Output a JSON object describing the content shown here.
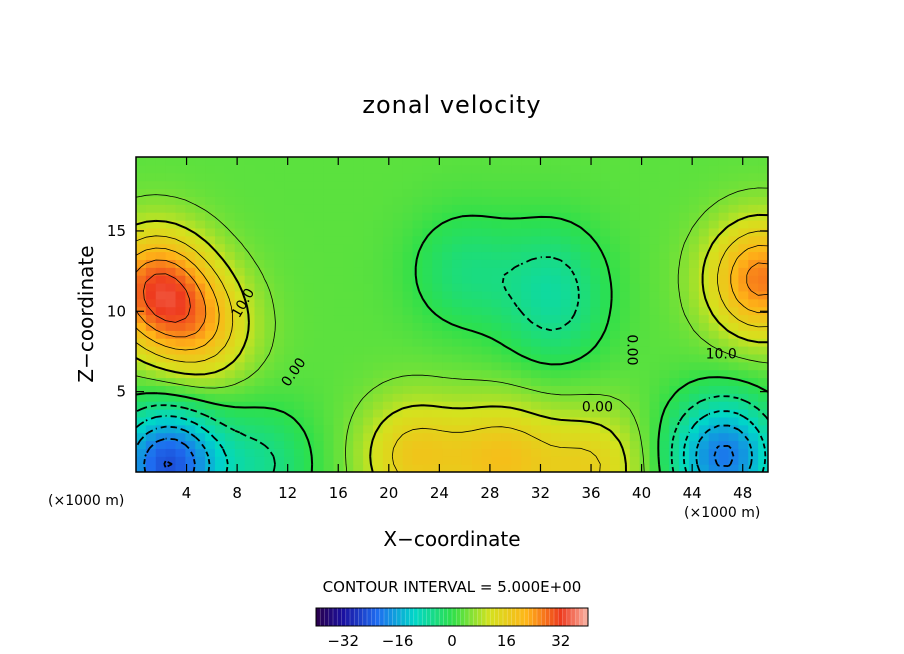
{
  "chart_data": {
    "type": "heatmap",
    "title": "zonal velocity",
    "xlabel": "X−coordinate",
    "ylabel": "Z−coordinate",
    "x_unit_left": "(×1000 m)",
    "x_unit_right": "(×1000 m)",
    "xlim": [
      0,
      50
    ],
    "ylim": [
      0,
      19.6
    ],
    "x_ticks": [
      4,
      8,
      12,
      16,
      20,
      24,
      28,
      32,
      36,
      40,
      44,
      48
    ],
    "y_ticks": [
      5,
      10,
      15
    ],
    "contour_interval_text": "CONTOUR INTERVAL = 5.000E+00",
    "contour_interval": 5.0,
    "colorbar": {
      "range": [
        -40,
        40
      ],
      "ticks": [
        -32,
        -16,
        0,
        16,
        32
      ],
      "tick_labels": [
        "−32",
        "−16",
        "0",
        "16",
        "32"
      ]
    },
    "contour_labels": [
      {
        "text": "10.0",
        "x": 8.5,
        "z": 10.5,
        "rotate": -60
      },
      {
        "text": "0.00",
        "x": 12.5,
        "z": 6.2,
        "rotate": -55
      },
      {
        "text": "0.00",
        "x": 39.2,
        "z": 7.6,
        "rotate": 90
      },
      {
        "text": "10.0",
        "x": 46.3,
        "z": 7.3,
        "rotate": 0
      },
      {
        "text": "0.00",
        "x": 36.5,
        "z": 4.0,
        "rotate": 0
      }
    ],
    "field_features": [
      {
        "kind": "max",
        "x": 1.5,
        "z": 11.5,
        "value": 25
      },
      {
        "kind": "max",
        "x": 49.5,
        "z": 12,
        "value": 24
      },
      {
        "kind": "max",
        "x": 5,
        "z": 9,
        "value": 15
      },
      {
        "kind": "min",
        "x": 2.5,
        "z": 0.5,
        "value": -28
      },
      {
        "kind": "min",
        "x": 46.5,
        "z": 1,
        "value": -24
      },
      {
        "kind": "min",
        "x": 10,
        "z": 0.5,
        "value": -8
      },
      {
        "kind": "min",
        "x": 26,
        "z": 12.5,
        "value": -7
      },
      {
        "kind": "min",
        "x": 33,
        "z": 12.5,
        "value": -6
      },
      {
        "kind": "min",
        "x": 33,
        "z": 9.5,
        "value": -6
      },
      {
        "kind": "max",
        "x": 22,
        "z": 1,
        "value": 14
      },
      {
        "kind": "max",
        "x": 29,
        "z": 0.8,
        "value": 15
      },
      {
        "kind": "max",
        "x": 36,
        "z": 0.3,
        "value": 12
      }
    ]
  }
}
